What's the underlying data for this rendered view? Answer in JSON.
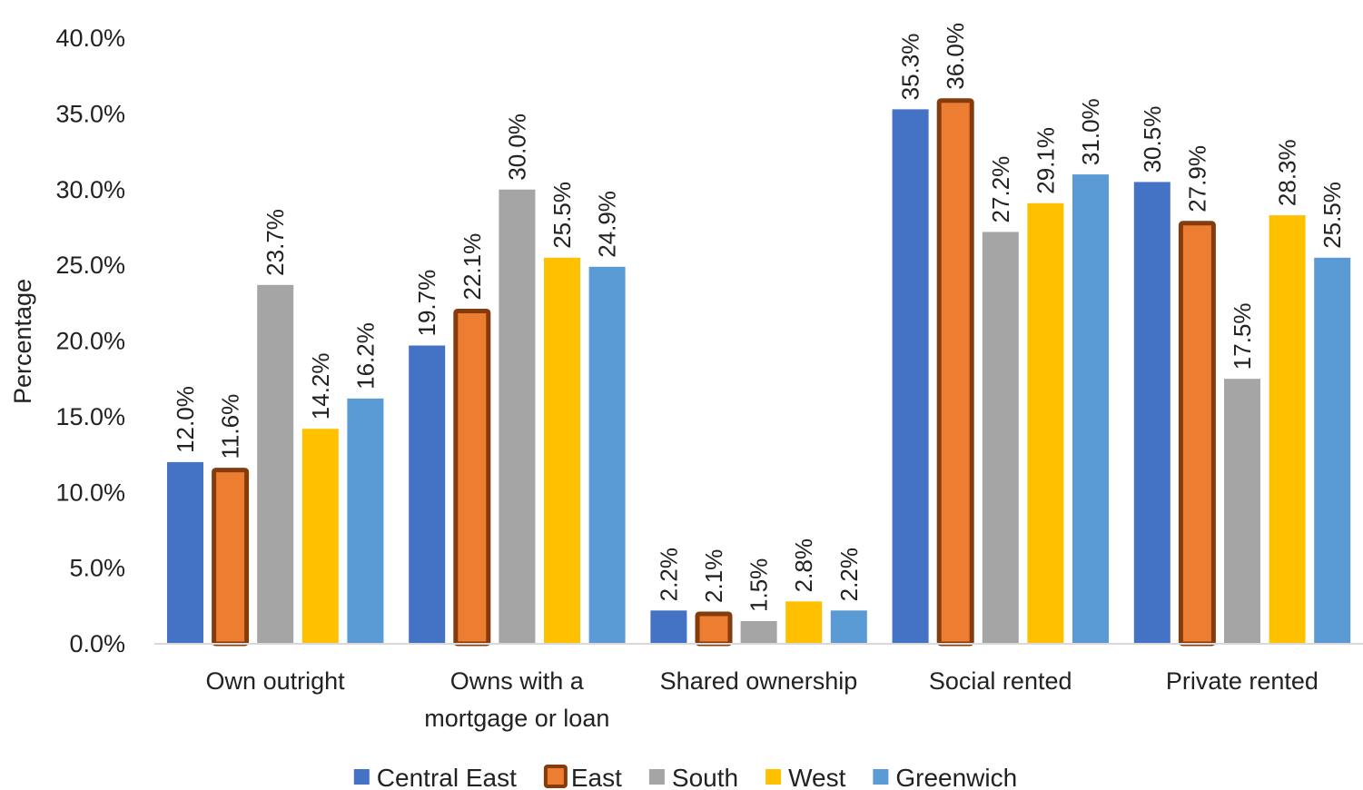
{
  "chart_data": {
    "type": "bar",
    "ylabel": "Percentage",
    "ylim": [
      0,
      40
    ],
    "y_ticks": [
      "0.0%",
      "5.0%",
      "10.0%",
      "15.0%",
      "20.0%",
      "25.0%",
      "30.0%",
      "35.0%",
      "40.0%"
    ],
    "grid": false,
    "legend_position": "bottom",
    "categories": [
      [
        "Own outright"
      ],
      [
        "Owns with a",
        "mortgage or loan"
      ],
      [
        "Shared ownership"
      ],
      [
        "Social rented"
      ],
      [
        "Private rented"
      ]
    ],
    "series": [
      {
        "name": "Central East",
        "color": "#4472C4",
        "highlight": false,
        "values": [
          12.0,
          19.7,
          2.2,
          35.3,
          30.5
        ],
        "labels": [
          "12.0%",
          "19.7%",
          "2.2%",
          "35.3%",
          "30.5%"
        ]
      },
      {
        "name": "East",
        "color": "#ED7D31",
        "highlight": true,
        "border_color": "#843C0C",
        "values": [
          11.6,
          22.1,
          2.1,
          36.0,
          27.9
        ],
        "labels": [
          "11.6%",
          "22.1%",
          "2.1%",
          "36.0%",
          "27.9%"
        ]
      },
      {
        "name": "South",
        "color": "#A5A5A5",
        "highlight": false,
        "values": [
          23.7,
          30.0,
          1.5,
          27.2,
          17.5
        ],
        "labels": [
          "23.7%",
          "30.0%",
          "1.5%",
          "27.2%",
          "17.5%"
        ]
      },
      {
        "name": "West",
        "color": "#FFC000",
        "highlight": false,
        "values": [
          14.2,
          25.5,
          2.8,
          29.1,
          28.3
        ],
        "labels": [
          "14.2%",
          "25.5%",
          "2.8%",
          "29.1%",
          "28.3%"
        ]
      },
      {
        "name": "Greenwich",
        "color": "#5B9BD5",
        "highlight": false,
        "values": [
          16.2,
          24.9,
          2.2,
          31.0,
          25.5
        ],
        "labels": [
          "16.2%",
          "24.9%",
          "2.2%",
          "31.0%",
          "25.5%"
        ]
      }
    ]
  }
}
